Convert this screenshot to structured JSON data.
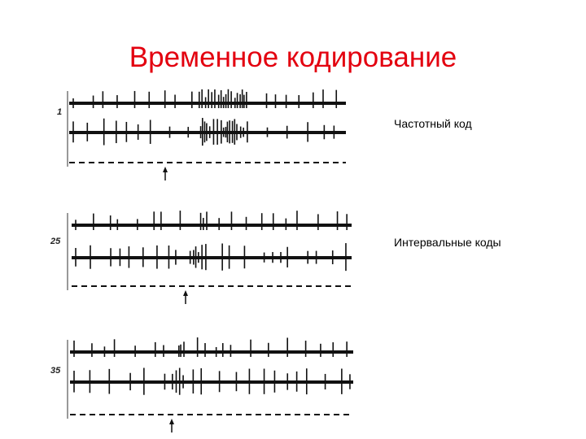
{
  "title": "Временное кодирование",
  "panels": [
    {
      "label": "1"
    },
    {
      "label": "25"
    },
    {
      "label": "35"
    }
  ],
  "annotations": [
    "Частотный код",
    "Интервальные коды"
  ]
}
